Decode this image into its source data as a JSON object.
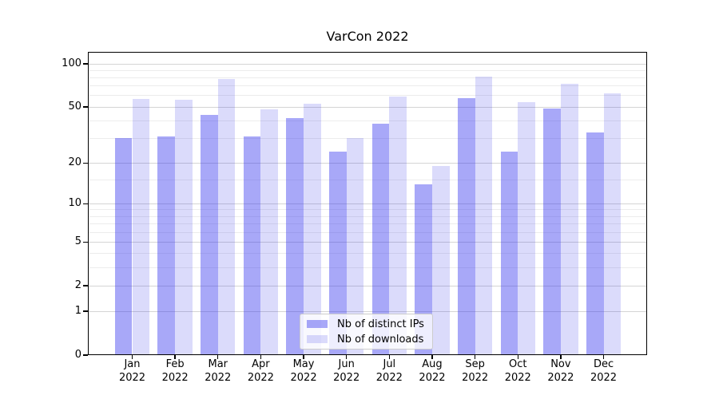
{
  "chart_data": {
    "type": "bar",
    "title": "VarCon 2022",
    "categories": [
      "Jan\n2022",
      "Feb\n2022",
      "Mar\n2022",
      "Apr\n2022",
      "May\n2022",
      "Jun\n2022",
      "Jul\n2022",
      "Aug\n2022",
      "Sep\n2022",
      "Oct\n2022",
      "Nov\n2022",
      "Dec\n2022"
    ],
    "series": [
      {
        "name": "Nb of distinct IPs",
        "color": "rgba(48,48,238,0.42)",
        "values": [
          30,
          31,
          44,
          31,
          42,
          24,
          38,
          14,
          58,
          24,
          49,
          33
        ]
      },
      {
        "name": "Nb of downloads",
        "color": "rgba(30,30,230,0.16)",
        "values": [
          57,
          56,
          78,
          48,
          53,
          30,
          59,
          19,
          82,
          54,
          73,
          62
        ]
      }
    ],
    "yscale": "log1p",
    "ylim": [
      0,
      121
    ],
    "yticks": [
      100,
      50,
      20,
      10,
      5,
      2,
      1,
      0
    ],
    "minor_gridline_values": [
      3,
      4,
      6,
      7,
      8,
      9,
      15,
      30,
      40,
      60,
      70,
      80,
      90
    ],
    "grid": true,
    "legend_position": "lower center"
  }
}
